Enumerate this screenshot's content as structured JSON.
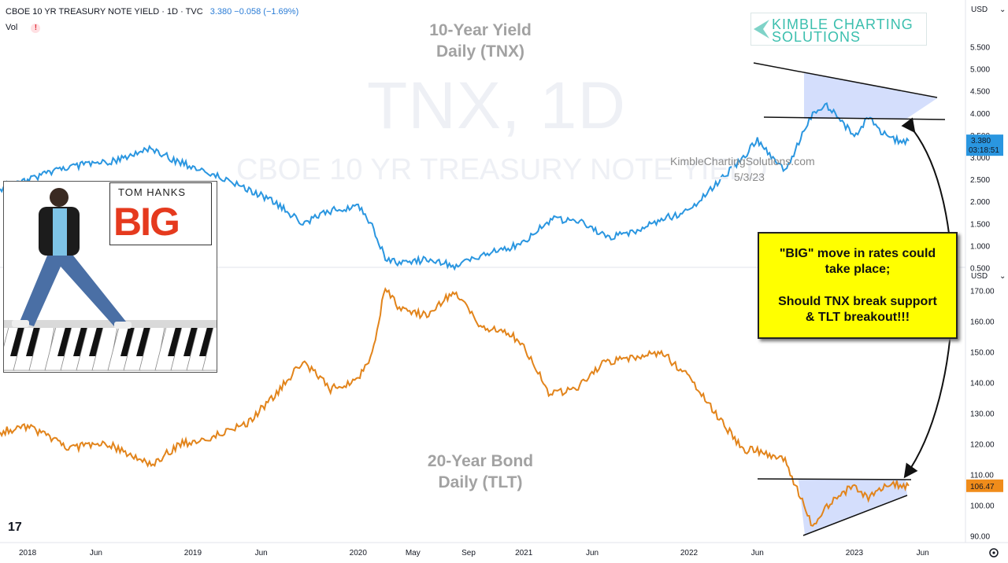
{
  "header": {
    "symbol": "CBOE 10 YR TREASURY NOTE YIELD · 1D · TVC",
    "values": "3.380  −0.058 (−1.69%)"
  },
  "vol_label": "Vol",
  "vol_warning": "!",
  "watermark": {
    "big": "TNX, 1D",
    "small": "CBOE 10 YR TREASURY NOTE YIELD"
  },
  "site_text": "KimbleChartingSolutions.com",
  "date_text": "5/3/23",
  "logo": {
    "line1": "KIMBLE CHARTING",
    "line2": "SOLUTIONS"
  },
  "poster": {
    "line1": "TOM HANKS",
    "line2": "BIG"
  },
  "callout": {
    "line1": "\"BIG\" move in rates could",
    "line2": "take place;",
    "line3": "Should TNX break support",
    "line4": "& TLT breakout!!!"
  },
  "tv_logo": "17",
  "colors": {
    "tnx": "#2a96e0",
    "tlt": "#e2841b",
    "channel_fill": "#cdd8fb",
    "callout_bg": "#ffff00",
    "tlt_label_bg": "#f08c1a",
    "tnx_label_bg": "#2a96e0"
  },
  "chart_data": [
    {
      "type": "line",
      "title": "10-Year Yield",
      "subtitle": "Daily (TNX)",
      "axis_label": "USD",
      "series": [
        {
          "name": "",
          "x": [
            "2017-11",
            "2018-01",
            "2018-04",
            "2018-07",
            "2018-10",
            "2018-12",
            "2019-02",
            "2019-05",
            "2019-07",
            "2019-09",
            "2019-11",
            "2020-01",
            "2020-02",
            "2020-03",
            "2020-04",
            "2020-06",
            "2020-08",
            "2020-10",
            "2020-12",
            "2021-01",
            "2021-03",
            "2021-05",
            "2021-07",
            "2021-09",
            "2021-11",
            "2022-01",
            "2022-03",
            "2022-05",
            "2022-06",
            "2022-08",
            "2022-10",
            "2022-11",
            "2023-01",
            "2023-02",
            "2023-03",
            "2023-04",
            "2023-05"
          ],
          "values": [
            2.3,
            2.5,
            2.8,
            2.9,
            3.2,
            2.9,
            2.7,
            2.3,
            2.0,
            1.5,
            1.8,
            1.9,
            1.5,
            0.7,
            0.6,
            0.7,
            0.55,
            0.8,
            0.95,
            1.1,
            1.6,
            1.6,
            1.2,
            1.3,
            1.6,
            1.8,
            2.4,
            3.0,
            3.4,
            2.7,
            4.0,
            4.2,
            3.5,
            3.9,
            3.6,
            3.4,
            3.38
          ]
        }
      ],
      "last_value": "3.380",
      "countdown": "03:18:51",
      "ylim": [
        0.25,
        5.75
      ],
      "yticks": [
        "5.500",
        "5.000",
        "4.500",
        "4.000",
        "3.500",
        "3.000",
        "2.500",
        "2.000",
        "1.500",
        "1.000",
        "0.500"
      ],
      "annotations": [
        "descending resistance 4.5 → 3.8",
        "support 3.4"
      ]
    },
    {
      "type": "line",
      "title": "20-Year Bond",
      "subtitle": "Daily (TLT)",
      "axis_label": "USD",
      "series": [
        {
          "name": "",
          "x": [
            "2017-11",
            "2018-01",
            "2018-04",
            "2018-07",
            "2018-10",
            "2018-12",
            "2019-02",
            "2019-05",
            "2019-07",
            "2019-09",
            "2019-11",
            "2020-01",
            "2020-02",
            "2020-03",
            "2020-04",
            "2020-06",
            "2020-08",
            "2020-10",
            "2020-12",
            "2021-01",
            "2021-03",
            "2021-05",
            "2021-07",
            "2021-09",
            "2021-11",
            "2022-01",
            "2022-03",
            "2022-05",
            "2022-06",
            "2022-08",
            "2022-10",
            "2022-11",
            "2023-01",
            "2023-02",
            "2023-03",
            "2023-04",
            "2023-05"
          ],
          "values": [
            124,
            126,
            119,
            120,
            113,
            120,
            122,
            127,
            136,
            147,
            138,
            141,
            150,
            171,
            164,
            162,
            170,
            158,
            156,
            152,
            136,
            139,
            147,
            148,
            150,
            142,
            130,
            118,
            118,
            115,
            93,
            100,
            107,
            102,
            106,
            107,
            106.47
          ]
        }
      ],
      "last_value": "106.47",
      "ylim": [
        88,
        178
      ],
      "yticks": [
        "170.00",
        "160.00",
        "150.00",
        "140.00",
        "130.00",
        "120.00",
        "110.00",
        "100.00",
        "90.00"
      ],
      "annotations": [
        "resistance 108",
        "rising support 93 → 103"
      ]
    }
  ],
  "x_axis": {
    "labels": [
      "2018",
      "Jun",
      "2019",
      "Jun",
      "2020",
      "May",
      "Sep",
      "2021",
      "Jun",
      "2022",
      "Jun",
      "2023",
      "Jun"
    ]
  }
}
